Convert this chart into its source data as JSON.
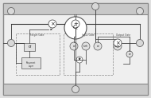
{
  "bg_color": "#e0e0e0",
  "fig_w": 1.9,
  "fig_h": 1.23,
  "dpi": 100
}
